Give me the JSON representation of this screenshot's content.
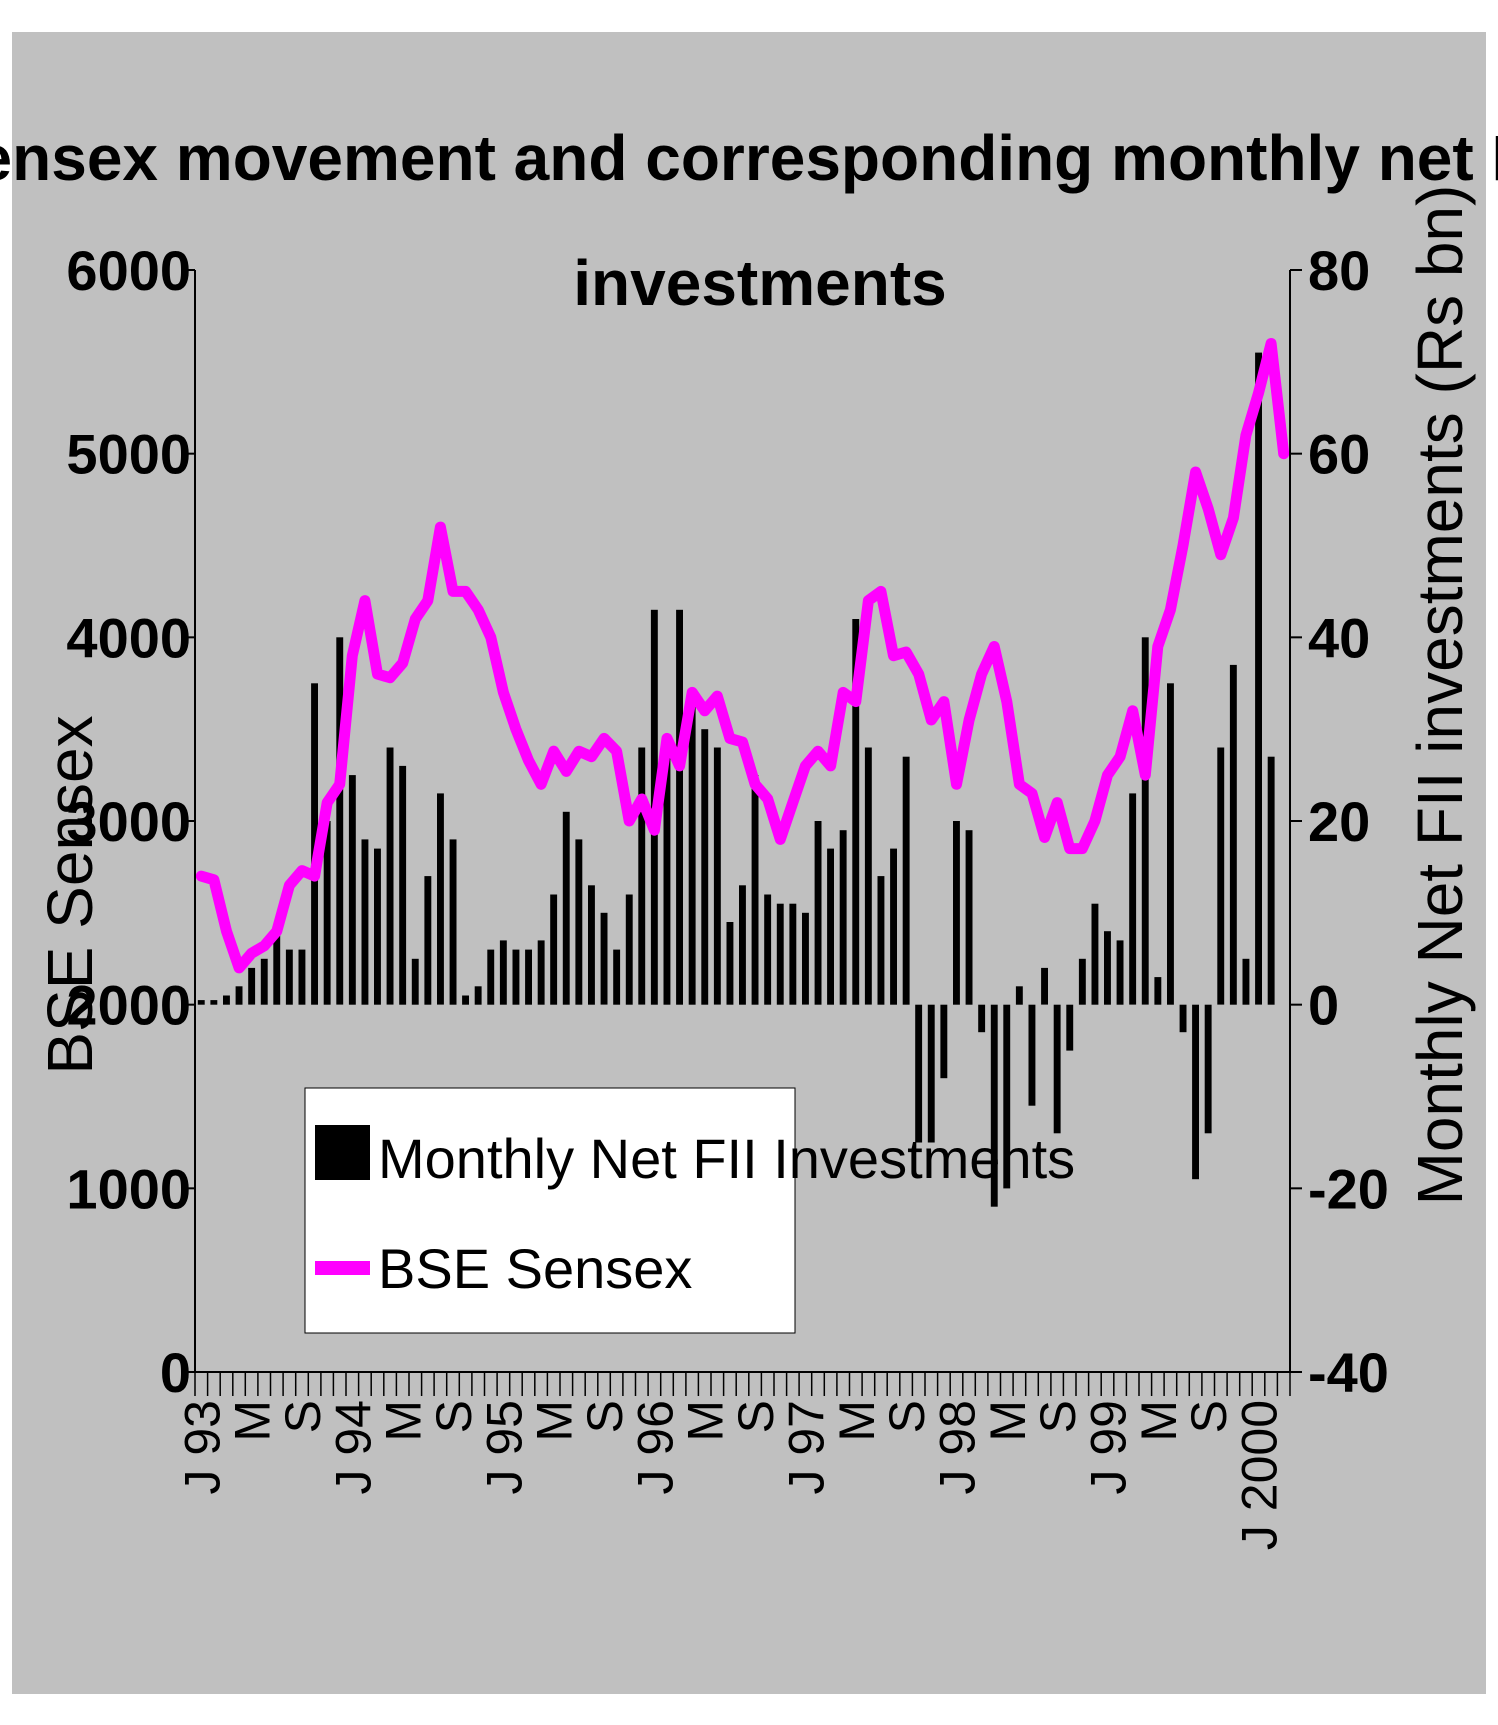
{
  "colors": {
    "background": "#c0c0c0",
    "plot_area": "#c0c0c0",
    "bars": "#000000",
    "line": "#ff00ff",
    "legend_bg": "#ffffff"
  },
  "chart_data": {
    "type": "bar",
    "title_lines": [
      "Sensex movement and corresponding monthly net FII",
      "investments"
    ],
    "left_axis": {
      "label": "BSE Sensex",
      "min": 0,
      "max": 6000,
      "ticks": [
        0,
        1000,
        2000,
        3000,
        4000,
        5000,
        6000
      ],
      "tick_labels": [
        "0",
        "1000",
        "2000",
        "3000",
        "4000",
        "5000",
        "6000"
      ]
    },
    "right_axis": {
      "label": "Monthly Net FII investments (Rs bn)",
      "min": -40,
      "max": 80,
      "ticks": [
        -40,
        -20,
        0,
        20,
        40,
        60,
        80
      ],
      "tick_labels": [
        "-40",
        "-20",
        "0",
        "20",
        "40",
        "60",
        "80"
      ]
    },
    "x_tick_labels": [
      {
        "index": 0,
        "label": "J 93"
      },
      {
        "index": 4,
        "label": "M"
      },
      {
        "index": 8,
        "label": "S"
      },
      {
        "index": 12,
        "label": "J 94"
      },
      {
        "index": 16,
        "label": "M"
      },
      {
        "index": 20,
        "label": "S"
      },
      {
        "index": 24,
        "label": "J 95"
      },
      {
        "index": 28,
        "label": "M"
      },
      {
        "index": 32,
        "label": "S"
      },
      {
        "index": 36,
        "label": "J 96"
      },
      {
        "index": 40,
        "label": "M"
      },
      {
        "index": 44,
        "label": "S"
      },
      {
        "index": 48,
        "label": "J 97"
      },
      {
        "index": 52,
        "label": "M"
      },
      {
        "index": 56,
        "label": "S"
      },
      {
        "index": 60,
        "label": "J 98"
      },
      {
        "index": 64,
        "label": "M"
      },
      {
        "index": 68,
        "label": "S"
      },
      {
        "index": 72,
        "label": "J 99"
      },
      {
        "index": 76,
        "label": "M"
      },
      {
        "index": 80,
        "label": "S"
      },
      {
        "index": 84,
        "label": "J 2000"
      }
    ],
    "legend": {
      "position": "lower-left",
      "entries": [
        {
          "name": "Monthly Net FII Investments",
          "kind": "bar"
        },
        {
          "name": "BSE Sensex",
          "kind": "line"
        }
      ]
    },
    "series": [
      {
        "name": "Monthly Net FII Investments",
        "axis": "right",
        "type": "bar",
        "values": [
          0.5,
          0.5,
          1,
          2,
          4,
          5,
          8,
          6,
          6,
          35,
          20,
          40,
          25,
          18,
          17,
          28,
          26,
          5,
          14,
          23,
          18,
          1,
          2,
          6,
          7,
          6,
          6,
          7,
          12,
          21,
          18,
          13,
          10,
          6,
          12,
          28,
          43,
          29,
          43,
          33,
          30,
          28,
          9,
          13,
          25,
          12,
          11,
          11,
          10,
          20,
          17,
          19,
          42,
          28,
          14,
          17,
          27,
          -15,
          -15,
          -8,
          20,
          19,
          -3,
          -22,
          -20,
          2,
          -11,
          4,
          -14,
          -5,
          5,
          11,
          8,
          7,
          23,
          40,
          3,
          35,
          -3,
          -19,
          -14,
          28,
          37,
          5,
          71,
          27
        ]
      },
      {
        "name": "BSE Sensex",
        "axis": "left",
        "type": "line",
        "values": [
          2700,
          2680,
          2400,
          2200,
          2280,
          2320,
          2400,
          2650,
          2730,
          2700,
          3100,
          3200,
          3900,
          4200,
          3800,
          3780,
          3860,
          4100,
          4200,
          4600,
          4250,
          4250,
          4150,
          4000,
          3700,
          3500,
          3330,
          3200,
          3380,
          3270,
          3380,
          3350,
          3450,
          3380,
          3000,
          3120,
          2950,
          3450,
          3300,
          3700,
          3600,
          3680,
          3450,
          3430,
          3200,
          3120,
          2900,
          3100,
          3300,
          3380,
          3300,
          3700,
          3650,
          4200,
          4250,
          3900,
          3920,
          3800,
          3550,
          3650,
          3200,
          3550,
          3800,
          3950,
          3650,
          3200,
          3150,
          2910,
          3100,
          2850,
          2850,
          3000,
          3250,
          3350,
          3600,
          3250,
          3950,
          4150,
          4500,
          4900,
          4700,
          4450,
          4650,
          5100,
          5330,
          5600,
          5000
        ]
      }
    ]
  }
}
